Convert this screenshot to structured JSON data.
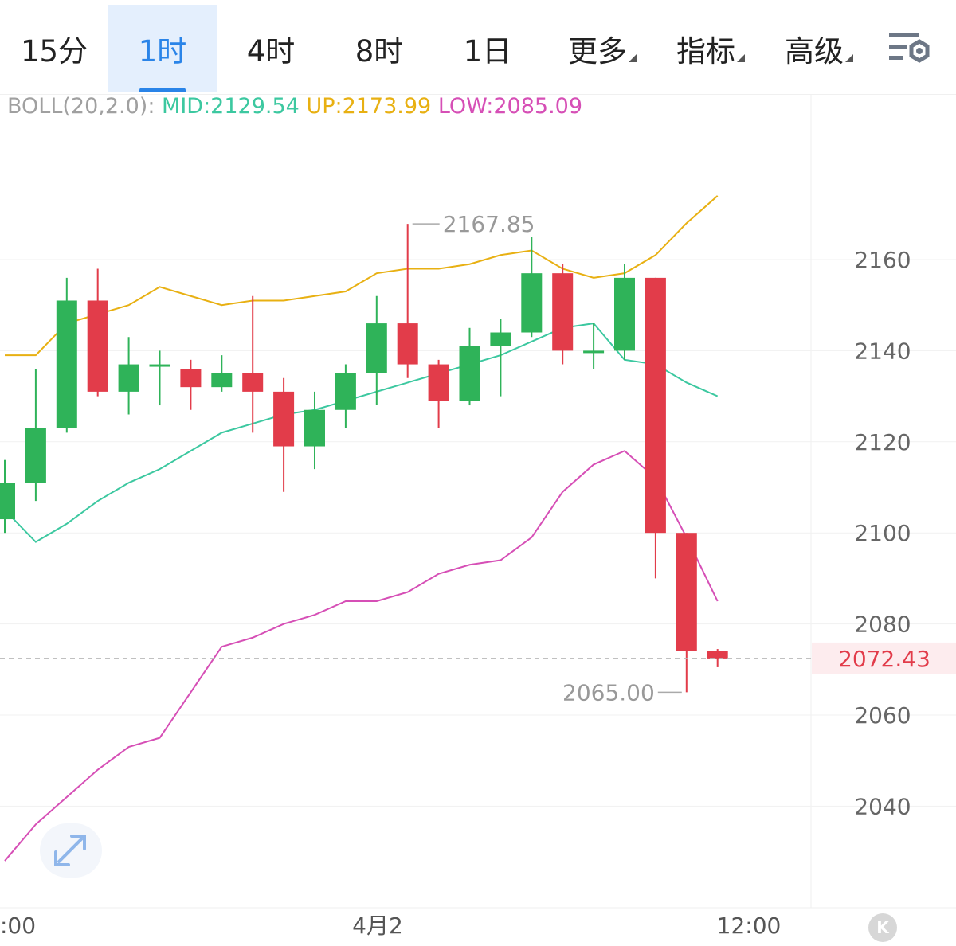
{
  "tabs": [
    {
      "label": "15分",
      "active": false,
      "dropdown": false
    },
    {
      "label": "1时",
      "active": true,
      "dropdown": false
    },
    {
      "label": "4时",
      "active": false,
      "dropdown": false
    },
    {
      "label": "8时",
      "active": false,
      "dropdown": false
    },
    {
      "label": "1日",
      "active": false,
      "dropdown": false
    },
    {
      "label": "更多",
      "active": false,
      "dropdown": true
    },
    {
      "label": "指标",
      "active": false,
      "dropdown": true
    },
    {
      "label": "高级",
      "active": false,
      "dropdown": true
    }
  ],
  "settings_icon": "chart-settings-icon",
  "expand_icon": "expand-arrows-icon",
  "kline_button": {
    "label": "K"
  },
  "indicator": {
    "name": "BOLL(20,2.0):",
    "mid": "MID:2129.54",
    "up": "UP:2173.99",
    "low": "LOW:2085.09",
    "colors": {
      "name": "#a0a0a0",
      "mid": "#3cc8a0",
      "up": "#e8b012",
      "low": "#d64fb6"
    }
  },
  "chart_data": {
    "type": "candlestick",
    "ylim": [
      2020,
      2195
    ],
    "yticks": [
      "2160",
      "2140",
      "2120",
      "2100",
      "2080",
      "2060",
      "2040"
    ],
    "xticks": [
      ":00",
      "4月2",
      "12:00"
    ],
    "last_price": "2072.43",
    "max_label": "2167.85",
    "min_label": "2065.00",
    "colors": {
      "up": "#2fb359",
      "down": "#e23c4a",
      "mid": "#3cc8a0",
      "upper": "#e8b012",
      "lower": "#d64fb6",
      "last": "#e23c4a"
    },
    "candles": [
      {
        "o": 2103,
        "h": 2116,
        "l": 2100,
        "c": 2111
      },
      {
        "o": 2111,
        "h": 2136,
        "l": 2107,
        "c": 2123
      },
      {
        "o": 2123,
        "h": 2156,
        "l": 2122,
        "c": 2151
      },
      {
        "o": 2151,
        "h": 2158,
        "l": 2130,
        "c": 2131
      },
      {
        "o": 2131,
        "h": 2143,
        "l": 2126,
        "c": 2137
      },
      {
        "o": 2137,
        "h": 2140,
        "l": 2128,
        "c": 2137
      },
      {
        "o": 2136,
        "h": 2138,
        "l": 2127,
        "c": 2132
      },
      {
        "o": 2132,
        "h": 2139,
        "l": 2131,
        "c": 2135
      },
      {
        "o": 2135,
        "h": 2152,
        "l": 2122,
        "c": 2131
      },
      {
        "o": 2131,
        "h": 2134,
        "l": 2109,
        "c": 2119
      },
      {
        "o": 2119,
        "h": 2131,
        "l": 2114,
        "c": 2127
      },
      {
        "o": 2127,
        "h": 2137,
        "l": 2123,
        "c": 2135
      },
      {
        "o": 2135,
        "h": 2152,
        "l": 2128,
        "c": 2146
      },
      {
        "o": 2146,
        "h": 2167.85,
        "l": 2134,
        "c": 2137
      },
      {
        "o": 2137,
        "h": 2138,
        "l": 2123,
        "c": 2129
      },
      {
        "o": 2129,
        "h": 2145,
        "l": 2128,
        "c": 2141
      },
      {
        "o": 2141,
        "h": 2147,
        "l": 2130,
        "c": 2144
      },
      {
        "o": 2144,
        "h": 2165,
        "l": 2143,
        "c": 2157
      },
      {
        "o": 2157,
        "h": 2159,
        "l": 2137,
        "c": 2140
      },
      {
        "o": 2140,
        "h": 2146,
        "l": 2136,
        "c": 2140
      },
      {
        "o": 2140,
        "h": 2159,
        "l": 2138,
        "c": 2156
      },
      {
        "o": 2156,
        "h": 2156,
        "l": 2090,
        "c": 2100
      },
      {
        "o": 2100,
        "h": 2100,
        "l": 2065.0,
        "c": 2074
      },
      {
        "o": 2074,
        "h": 2074.5,
        "l": 2070.5,
        "c": 2072.43
      }
    ],
    "boll_mid": [
      2105,
      2098,
      2102,
      2107,
      2111,
      2114,
      2118,
      2122,
      2124,
      2126,
      2127,
      2129,
      2131,
      2133,
      2135,
      2137,
      2139,
      2142,
      2145,
      2146,
      2138,
      2137,
      2133,
      2130
    ],
    "boll_upper": [
      2139,
      2139,
      2146,
      2148,
      2150,
      2154,
      2152,
      2150,
      2151,
      2151,
      2152,
      2153,
      2157,
      2158,
      2158,
      2159,
      2161,
      2162,
      2158,
      2156,
      2157,
      2161,
      2168,
      2174
    ],
    "boll_lower": [
      2028,
      2036,
      2042,
      2048,
      2053,
      2055,
      2065,
      2075,
      2077,
      2080,
      2082,
      2085,
      2085,
      2087,
      2091,
      2093,
      2094,
      2099,
      2109,
      2115,
      2118,
      2112,
      2099,
      2085
    ]
  }
}
